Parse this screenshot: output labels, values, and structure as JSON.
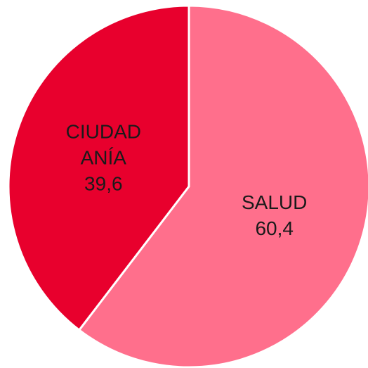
{
  "chart_data": {
    "type": "pie",
    "categories": [
      "SALUD",
      "CIUDADANÍA"
    ],
    "values": [
      60.4,
      39.6
    ],
    "value_labels": [
      "60,4",
      "39,6"
    ],
    "colors": [
      "#ff6f8c",
      "#e8002d"
    ]
  }
}
